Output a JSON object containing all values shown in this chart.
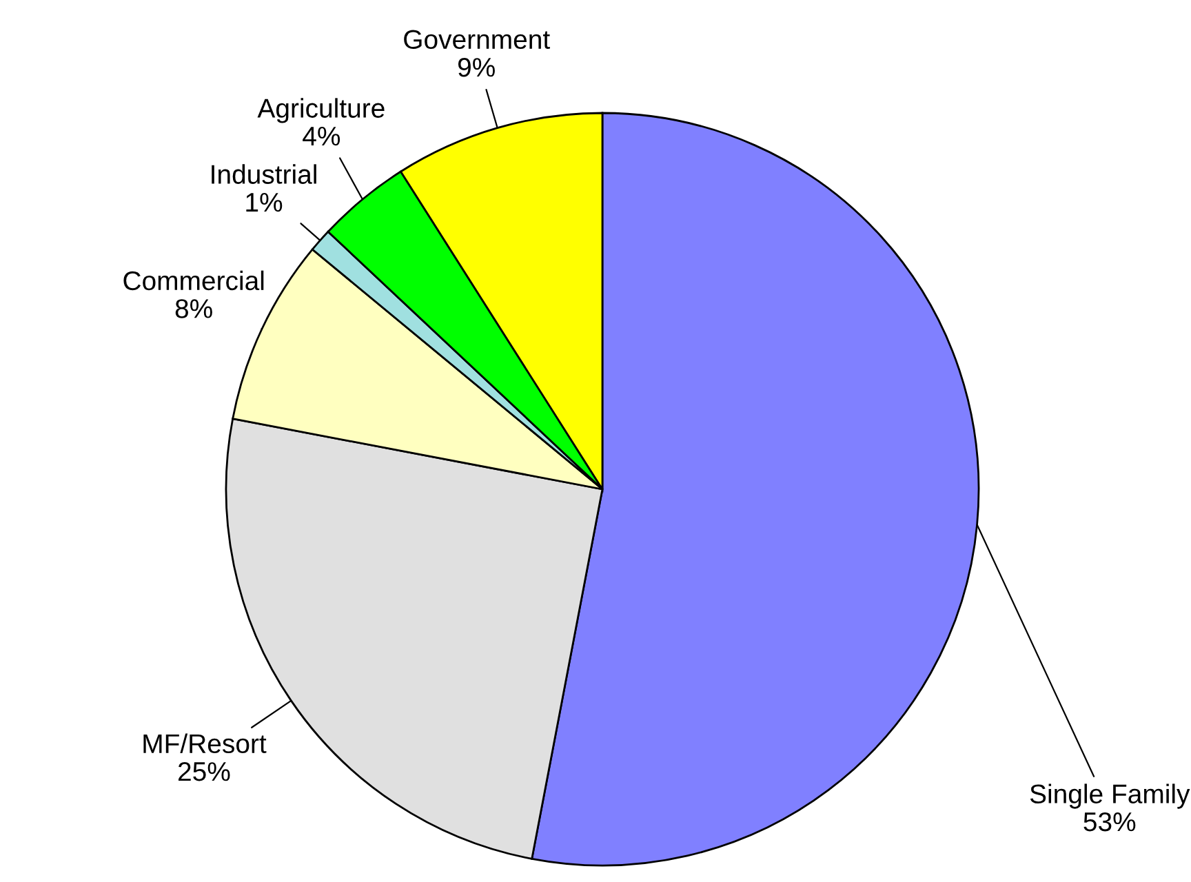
{
  "chart_data": {
    "type": "pie",
    "categories": [
      "Single Family",
      "MF/Resort",
      "Commercial",
      "Industrial",
      "Agriculture",
      "Government"
    ],
    "values": [
      53,
      25,
      8,
      1,
      4,
      9
    ],
    "colors": [
      "#8080ff",
      "#e0e0e0",
      "#ffffc0",
      "#a0e0e0",
      "#00ff00",
      "#ffff00"
    ],
    "value_labels": [
      "53%",
      "25%",
      "8%",
      "1%",
      "4%",
      "9%"
    ]
  }
}
